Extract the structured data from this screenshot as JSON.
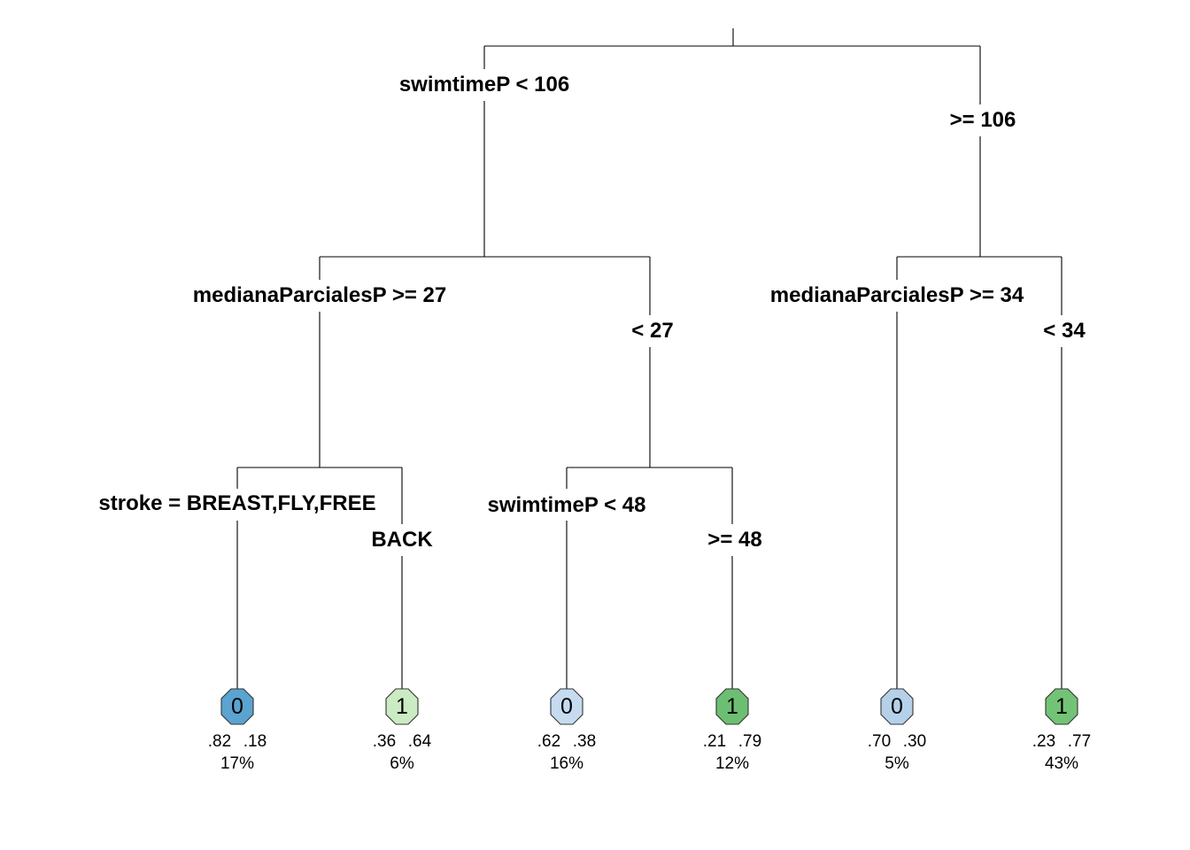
{
  "tree": {
    "root": {
      "split_label": "swimtimeP < 106",
      "alt_label": ">= 106",
      "left": {
        "split_label": "medianaParcialesP >= 27",
        "alt_label": "< 27",
        "left": {
          "split_label": "stroke = BREAST,FLY,FREE",
          "alt_label": "BACK",
          "left_leaf": 0,
          "right_leaf": 1
        },
        "right": {
          "split_label": "swimtimeP < 48",
          "alt_label": ">= 48",
          "left_leaf": 2,
          "right_leaf": 3
        }
      },
      "right": {
        "split_label": "medianaParcialesP >= 34",
        "alt_label": "< 34",
        "left_leaf": 4,
        "right_leaf": 5
      }
    },
    "leaves": [
      {
        "class": "0",
        "prob0": ".82",
        "prob1": ".18",
        "percent": "17%",
        "color": "#5ba3d0"
      },
      {
        "class": "1",
        "prob0": ".36",
        "prob1": ".64",
        "percent": "6%",
        "color": "#cbebc2"
      },
      {
        "class": "0",
        "prob0": ".62",
        "prob1": ".38",
        "percent": "16%",
        "color": "#c6dbef"
      },
      {
        "class": "1",
        "prob0": ".21",
        "prob1": ".79",
        "percent": "12%",
        "color": "#6cbf72"
      },
      {
        "class": "0",
        "prob0": ".70",
        "prob1": ".30",
        "percent": "5%",
        "color": "#b5d1ea"
      },
      {
        "class": "1",
        "prob0": ".23",
        "prob1": ".77",
        "percent": "43%",
        "color": "#73c377"
      }
    ]
  }
}
